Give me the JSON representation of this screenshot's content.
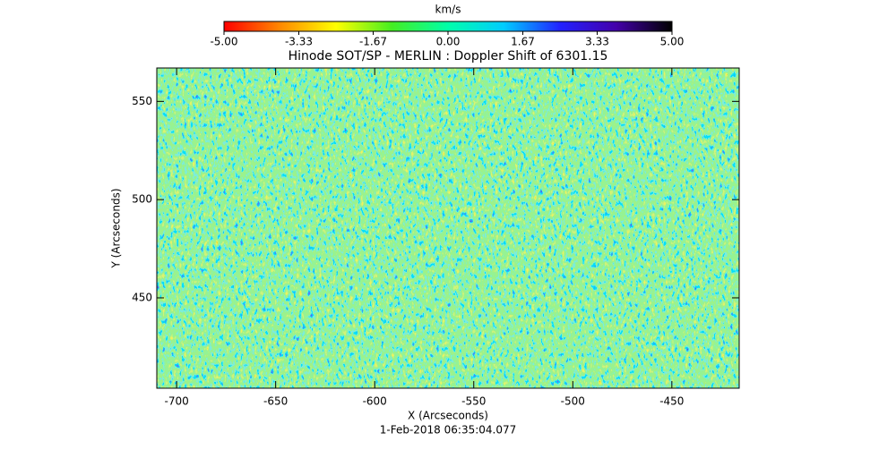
{
  "chart_data": {
    "type": "heatmap",
    "title": "Hinode SOT/SP - MERLIN : Doppler Shift of 6301.15",
    "subtitle": "1-Feb-2018 06:35:04.077",
    "x_label": "X (Arcseconds)",
    "y_label": "Y (Arcseconds)",
    "xlim": [
      -710,
      -416
    ],
    "xticks": [
      -700,
      -650,
      -600,
      -550,
      -500,
      -450
    ],
    "ylim": [
      404,
      567
    ],
    "yticks": [
      450,
      500,
      550
    ],
    "colorbar": {
      "label": "km/s",
      "lim": [
        -5,
        5
      ],
      "ticks": [
        {
          "value": -5,
          "label": "-5.00"
        },
        {
          "value": -3.33,
          "label": "-3.33"
        },
        {
          "value": -1.67,
          "label": "-1.67"
        },
        {
          "value": 0,
          "label": "0.00"
        },
        {
          "value": 1.67,
          "label": "1.67"
        },
        {
          "value": 3.33,
          "label": "3.33"
        },
        {
          "value": 5,
          "label": "5.00"
        }
      ],
      "colormap": [
        "#ff0000",
        "#ff8800",
        "#ffff00",
        "#44ee22",
        "#00ffaa",
        "#00ccff",
        "#2222ff",
        "#4400aa",
        "#000000"
      ]
    }
  }
}
